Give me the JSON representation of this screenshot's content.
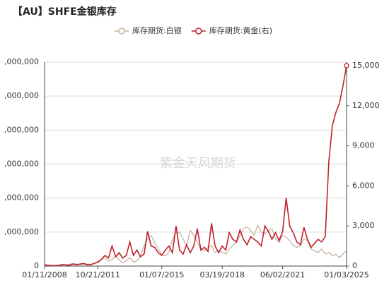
{
  "chart_data": {
    "type": "line",
    "title": "【AU】SHFE金银库存",
    "watermark": "紫金天风期货",
    "categories": [
      "01/11/2008",
      null,
      null,
      null,
      null,
      null,
      null,
      null,
      null,
      null,
      null,
      null,
      null,
      null,
      null,
      "10/21/2011",
      null,
      null,
      null,
      null,
      null,
      null,
      null,
      null,
      null,
      null,
      null,
      null,
      null,
      null,
      null,
      null,
      null,
      "01/07/2015",
      null,
      null,
      null,
      null,
      null,
      null,
      null,
      null,
      null,
      null,
      null,
      null,
      null,
      null,
      null,
      null,
      "03/19/2018",
      null,
      null,
      null,
      null,
      null,
      null,
      null,
      null,
      null,
      null,
      null,
      null,
      null,
      null,
      null,
      null,
      "06/02/2021",
      null,
      null,
      null,
      null,
      null,
      null,
      null,
      null,
      null,
      null,
      null,
      null,
      null,
      null,
      null,
      null,
      null,
      "01/03/2025"
    ],
    "series": [
      {
        "name": "库存期货:白银",
        "color": "#c4b4a2",
        "axis": "y",
        "values": [
          50000,
          30000,
          20000,
          20000,
          30000,
          50000,
          40000,
          50000,
          80000,
          60000,
          50000,
          50000,
          60000,
          50000,
          80000,
          100000,
          200000,
          250000,
          150000,
          200000,
          300000,
          180000,
          100000,
          150000,
          250000,
          120000,
          150000,
          300000,
          600000,
          800000,
          900000,
          700000,
          500000,
          350000,
          300000,
          400000,
          800000,
          950000,
          1000000,
          800000,
          600000,
          1050000,
          900000,
          700000,
          500000,
          450000,
          550000,
          600000,
          400000,
          450000,
          400000,
          350000,
          500000,
          600000,
          700000,
          900000,
          1100000,
          1150000,
          1050000,
          900000,
          1200000,
          1000000,
          950000,
          1050000,
          1100000,
          800000,
          700000,
          900000,
          850000,
          750000,
          600000,
          550000,
          600000,
          800000,
          750000,
          500000,
          450000,
          400000,
          500000,
          350000,
          400000,
          300000,
          350000,
          250000,
          350000,
          450000
        ]
      },
      {
        "name": "库存期货:黄金(右)",
        "color": "#c0202a",
        "axis": "y2",
        "values": [
          100,
          50,
          30,
          20,
          50,
          100,
          80,
          60,
          150,
          100,
          150,
          200,
          100,
          100,
          200,
          300,
          500,
          800,
          600,
          1500,
          700,
          1000,
          600,
          800,
          1800,
          800,
          1200,
          700,
          900,
          2600,
          1500,
          1400,
          1000,
          800,
          1200,
          1500,
          1000,
          3000,
          1200,
          900,
          1600,
          1000,
          1500,
          2800,
          1200,
          1400,
          1100,
          3200,
          1500,
          1000,
          1500,
          1200,
          2500,
          2000,
          1800,
          2700,
          2000,
          1600,
          2200,
          2000,
          1800,
          1500,
          3000,
          2600,
          2000,
          2500,
          1900,
          2600,
          5100,
          3000,
          2500,
          1800,
          1600,
          2900,
          2000,
          1400,
          1700,
          2000,
          1800,
          2200,
          7800,
          10500,
          11500,
          12200,
          13500,
          15000
        ]
      }
    ],
    "ylim": [
      0,
      6000000
    ],
    "yticks": [
      0,
      {
        "value": 1000000,
        "label": ",000,000"
      },
      {
        "value": 2000000,
        "label": ",000,000"
      },
      {
        "value": 3000000,
        "label": ",000,000"
      },
      {
        "value": 4000000,
        "label": ",000,000"
      },
      {
        "value": 5000000,
        "label": ",000,000"
      },
      {
        "value": 6000000,
        "label": ",000,000"
      }
    ],
    "y2lim": [
      0,
      15264
    ],
    "y2ticks": [
      0,
      {
        "value": 3000,
        "label": "3,000"
      },
      {
        "value": 6000,
        "label": "6,000"
      },
      {
        "value": 9000,
        "label": "9,000"
      },
      {
        "value": 12000,
        "label": "12,000"
      },
      {
        "value": 15000,
        "label": "15,000"
      }
    ],
    "grid": true
  }
}
